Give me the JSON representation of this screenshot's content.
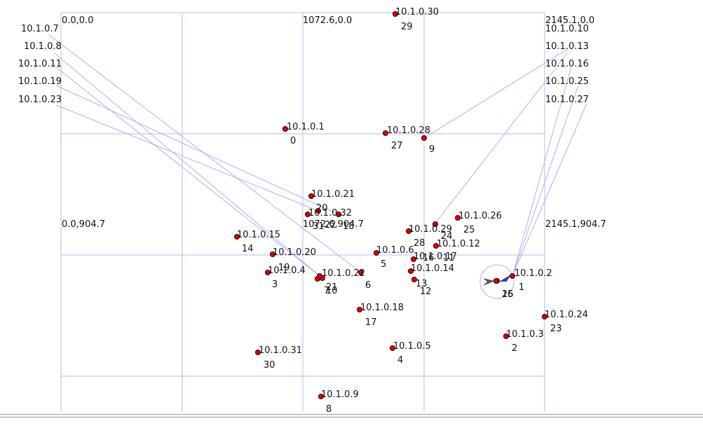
{
  "colors": {
    "background": "#ffffff",
    "grid": "#b8b8f0",
    "link": "#b0b0ee",
    "node_fill": "#dd0000",
    "node_stroke": "#330000",
    "text": "#111111",
    "arrow": "#555566",
    "arrow_accent": "#3344aa",
    "border": "#a0a0a0"
  },
  "corner_labels": [
    {
      "id": "top-left",
      "text": "0.0,0.0"
    },
    {
      "id": "top-center",
      "text": "1072.6,0.0"
    },
    {
      "id": "top-right",
      "text": "2145.1,0.0"
    },
    {
      "id": "mid-left",
      "text": "0.0,904.7"
    },
    {
      "id": "mid-center",
      "text": "1072.6,904.7"
    },
    {
      "id": "mid-right",
      "text": "2145.1,904.7"
    }
  ],
  "nodes": [
    {
      "id": 0,
      "ip": "10.1.0.1"
    },
    {
      "id": 1,
      "ip": "10.1.0.2"
    },
    {
      "id": 2,
      "ip": "10.1.0.3"
    },
    {
      "id": 3,
      "ip": "10.1.0.4"
    },
    {
      "id": 4,
      "ip": "10.1.0.5"
    },
    {
      "id": 5,
      "ip": "10.1.0.6"
    },
    {
      "id": 6,
      "ip": "10.1.0.7"
    },
    {
      "id": 7,
      "ip": "10.1.0.8"
    },
    {
      "id": 8,
      "ip": "10.1.0.9"
    },
    {
      "id": 9,
      "ip": "10.1.0.10"
    },
    {
      "id": 10,
      "ip": "10.1.0.11"
    },
    {
      "id": 11,
      "ip": "10.1.0.12"
    },
    {
      "id": 12,
      "ip": "10.1.0.13"
    },
    {
      "id": 13,
      "ip": "10.1.0.14"
    },
    {
      "id": 14,
      "ip": "10.1.0.15"
    },
    {
      "id": 15,
      "ip": "10.1.0.16"
    },
    {
      "id": 16,
      "ip": "10.1.0.17"
    },
    {
      "id": 17,
      "ip": "10.1.0.18"
    },
    {
      "id": 18,
      "ip": "10.1.0.19"
    },
    {
      "id": 19,
      "ip": "10.1.0.20"
    },
    {
      "id": 20,
      "ip": "10.1.0.21"
    },
    {
      "id": 21,
      "ip": "10.1.0.22"
    },
    {
      "id": 22,
      "ip": "10.1.0.23"
    },
    {
      "id": 23,
      "ip": "10.1.0.24"
    },
    {
      "id": 24,
      "ip": "10.1.0.25"
    },
    {
      "id": 25,
      "ip": "10.1.0.26"
    },
    {
      "id": 26,
      "ip": "10.1.0.27"
    },
    {
      "id": 27,
      "ip": "10.1.0.28"
    },
    {
      "id": 28,
      "ip": "10.1.0.29"
    },
    {
      "id": 29,
      "ip": "10.1.0.30"
    },
    {
      "id": 30,
      "ip": "10.1.0.31"
    },
    {
      "id": 31,
      "ip": "10.1.0.32"
    }
  ],
  "links": [
    [
      6,
      10
    ],
    [
      7,
      21
    ],
    [
      10,
      6
    ],
    [
      18,
      31
    ],
    [
      22,
      18
    ],
    [
      9,
      28
    ],
    [
      12,
      1
    ],
    [
      15,
      1
    ],
    [
      24,
      1
    ],
    [
      26,
      1
    ]
  ]
}
